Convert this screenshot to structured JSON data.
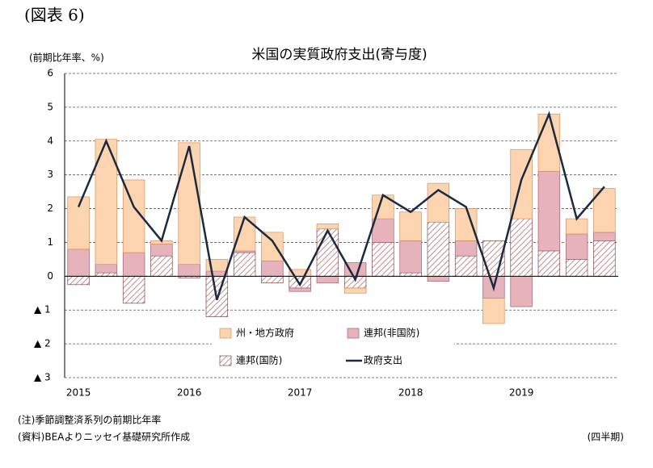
{
  "figure_label": "(図表 6)",
  "notes": [
    "(注)季節調整済系列の前期比年率",
    "(資料)BEAよりニッセイ基礎研究所作成"
  ],
  "x_unit": "(四半期)",
  "chart_data": {
    "type": "bar",
    "title": "米国の実質政府支出(寄与度)",
    "y_label": "(前期比年率、%)",
    "categories": [
      "2015",
      null,
      null,
      null,
      "2016",
      null,
      null,
      null,
      "2017",
      null,
      null,
      null,
      "2018",
      null,
      null,
      null,
      "2019",
      null,
      null,
      null
    ],
    "series": [
      {
        "name": "州・地方政府",
        "type": "bar",
        "color": "#fcd5b0",
        "values": [
          1.55,
          3.7,
          2.15,
          0.1,
          3.6,
          0.35,
          1.0,
          0.85,
          0.2,
          0.15,
          -0.15,
          0.7,
          0.85,
          1.15,
          0.95,
          -0.75,
          2.05,
          1.7,
          0.45,
          1.3
        ]
      },
      {
        "name": "連邦(非国防)",
        "type": "bar",
        "color": "#e6b3bb",
        "values": [
          0.8,
          0.25,
          0.7,
          0.35,
          0.35,
          0.15,
          0.05,
          0.45,
          -0.1,
          -0.2,
          0.4,
          0.7,
          0.95,
          -0.15,
          0.45,
          -0.65,
          -0.9,
          2.35,
          0.75,
          0.25
        ]
      },
      {
        "name": "連邦(国防)",
        "type": "bar",
        "color": "#b07070",
        "pattern": "hatch",
        "values": [
          -0.25,
          0.1,
          -0.8,
          0.6,
          -0.05,
          -1.2,
          0.7,
          -0.2,
          -0.35,
          1.4,
          -0.35,
          1.0,
          0.1,
          1.6,
          0.6,
          1.05,
          1.7,
          0.75,
          0.5,
          1.05
        ]
      },
      {
        "name": "政府支出",
        "type": "line",
        "color": "#1c2a40",
        "values": [
          2.05,
          4.0,
          2.05,
          1.05,
          3.85,
          -0.7,
          1.75,
          1.05,
          -0.25,
          1.35,
          -0.1,
          2.4,
          1.9,
          2.55,
          2.05,
          -0.35,
          2.85,
          4.8,
          1.7,
          2.65
        ]
      }
    ],
    "ylim": [
      -3,
      6
    ],
    "yticks": [
      {
        "value": -3,
        "label": "▲ 3"
      },
      {
        "value": -2,
        "label": "▲ 2"
      },
      {
        "value": -1,
        "label": "▲ 1"
      },
      0,
      1,
      2,
      3,
      4,
      5,
      6
    ],
    "grid": true
  }
}
